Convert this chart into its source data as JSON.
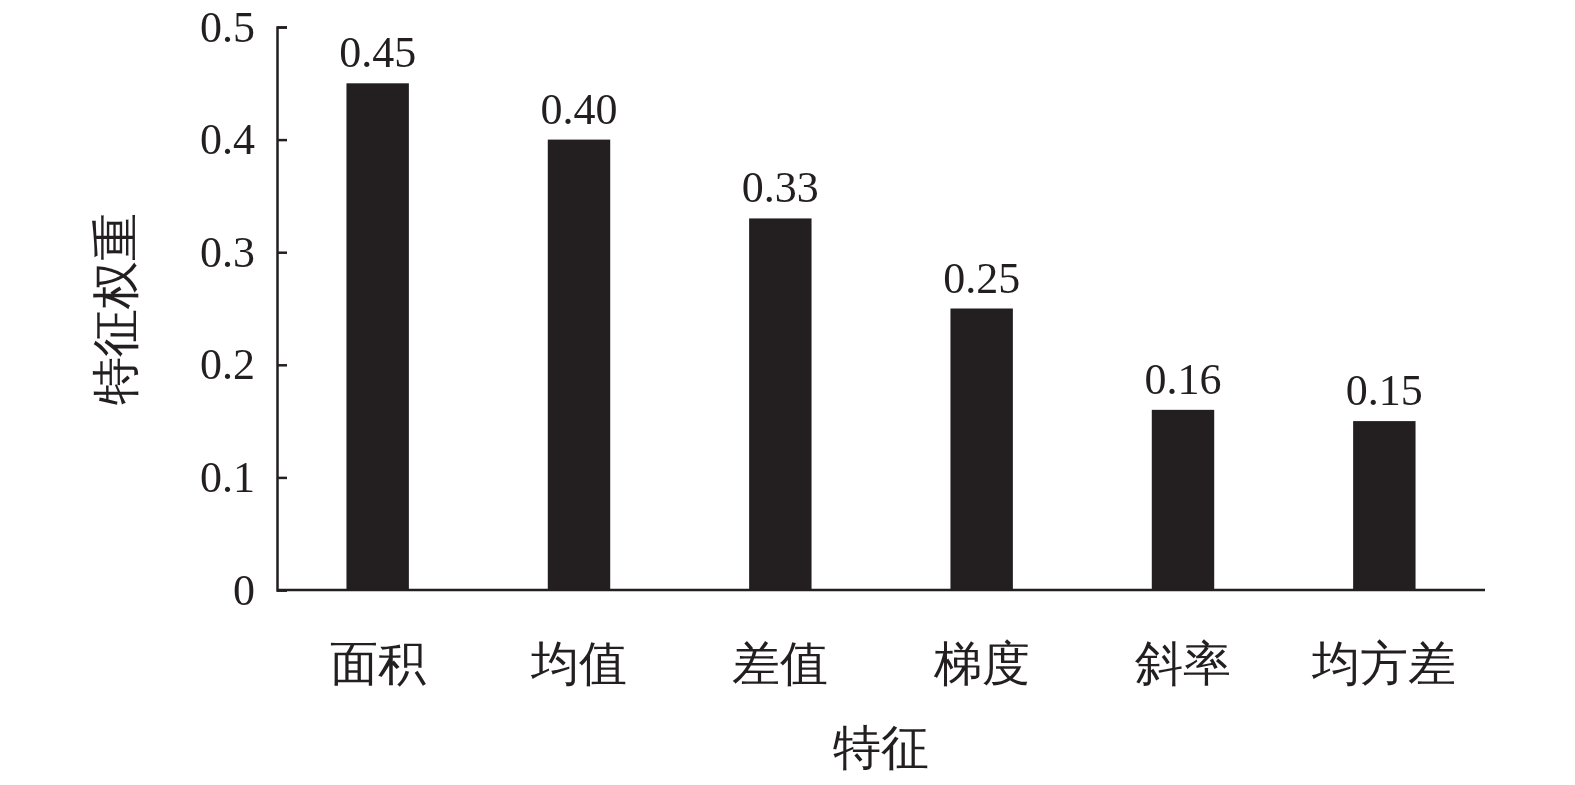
{
  "chart_data": {
    "type": "bar",
    "xlabel": "特征",
    "ylabel": "特征权重",
    "categories": [
      "面积",
      "均值",
      "差值",
      "梯度",
      "斜率",
      "均方差"
    ],
    "values": [
      0.45,
      0.4,
      0.33,
      0.25,
      0.16,
      0.15
    ],
    "value_labels": [
      "0.45",
      "0.40",
      "0.33",
      "0.25",
      "0.16",
      "0.15"
    ],
    "color": "#231f20",
    "ylim": [
      0,
      0.5
    ],
    "yticks": [
      0,
      0.1,
      0.2,
      0.3,
      0.4,
      0.5
    ],
    "grid": false
  }
}
